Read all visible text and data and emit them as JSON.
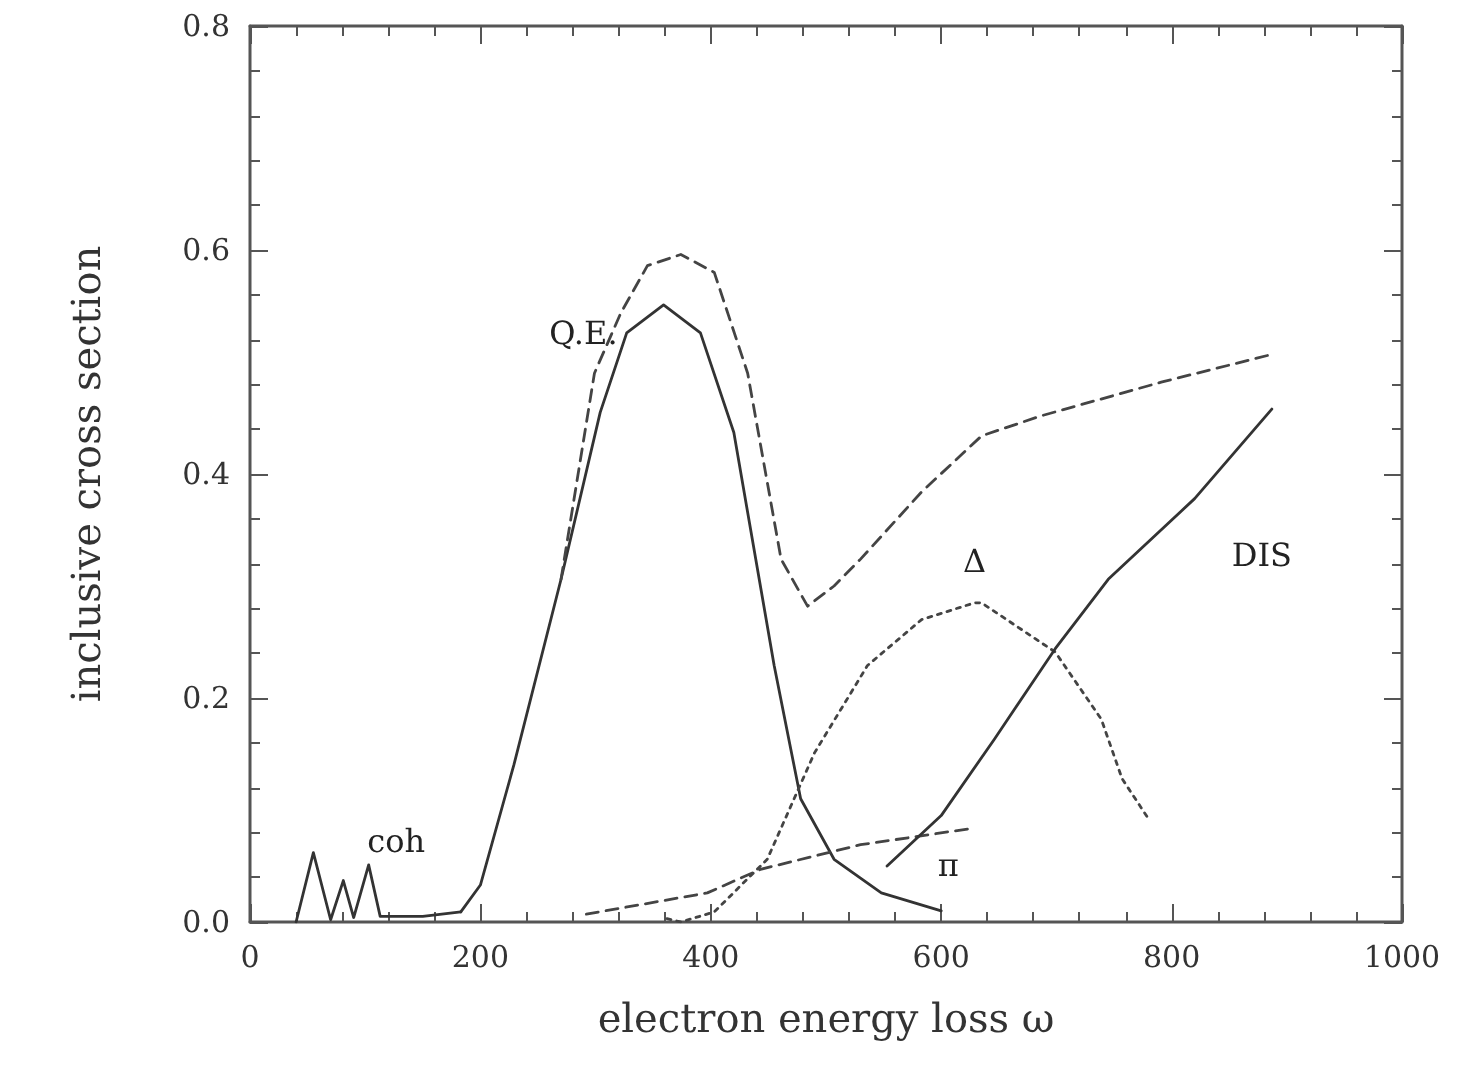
{
  "chart_data": {
    "type": "line",
    "xlabel": "electron energy loss ω",
    "ylabel": "inclusive cross section",
    "xlim": [
      0,
      1000
    ],
    "xticks": [
      0,
      200,
      400,
      600,
      800,
      1000
    ],
    "ylim": [
      0,
      0.8
    ],
    "yticks": [
      {
        "value": 0,
        "label": "0.0"
      },
      {
        "value": 0.2,
        "label": "0.2"
      },
      {
        "value": 0.4,
        "label": "0.4"
      },
      {
        "value": 0.6,
        "label": "0.6"
      },
      {
        "value": 0.8,
        "label": "0.8"
      }
    ],
    "grid": false,
    "legend": false,
    "marker": "none",
    "series": [
      {
        "name": "coh",
        "color": "#333333",
        "line_style": "solid",
        "x": [
          40,
          55,
          70,
          81,
          90,
          103,
          113,
          150,
          183
        ],
        "values": [
          0,
          0.062,
          0.002,
          0.037,
          0.004,
          0.051,
          0.005,
          0.005,
          0.009
        ]
      },
      {
        "name": "Q.E.",
        "color": "#333333",
        "line_style": "solid",
        "x": [
          183,
          200,
          229,
          270,
          304,
          327,
          359,
          391,
          420,
          455,
          478,
          507,
          548,
          600
        ],
        "values": [
          0.009,
          0.033,
          0.14,
          0.306,
          0.455,
          0.526,
          0.551,
          0.526,
          0.437,
          0.229,
          0.11,
          0.056,
          0.026,
          0.01
        ]
      },
      {
        "color": "#444444",
        "line_style": "dashed",
        "x": [
          270,
          299,
          322,
          345,
          374,
          403,
          432,
          461,
          484,
          507,
          530,
          583,
          635,
          687,
          791,
          884
        ],
        "values": [
          0.306,
          0.49,
          0.544,
          0.586,
          0.596,
          0.58,
          0.49,
          0.324,
          0.282,
          0.3,
          0.324,
          0.384,
          0.434,
          0.452,
          0.482,
          0.506
        ]
      },
      {
        "name": "Δ",
        "color": "#444444",
        "line_style": "dotted",
        "x": [
          362,
          374,
          403,
          449,
          490,
          536,
          583,
          629,
          635,
          699,
          739,
          757,
          780
        ],
        "values": [
          0.003,
          0,
          0.009,
          0.056,
          0.151,
          0.229,
          0.27,
          0.285,
          0.285,
          0.241,
          0.181,
          0.128,
          0.092
        ]
      },
      {
        "name": "π",
        "color": "#444444",
        "line_style": "dashed",
        "x": [
          292,
          397,
          443,
          530,
          623
        ],
        "values": [
          0.007,
          0.026,
          0.047,
          0.069,
          0.083
        ]
      },
      {
        "name": "DIS",
        "color": "#333333",
        "line_style": "solid",
        "x": [
          553,
          600,
          646,
          699,
          745,
          820,
          887
        ],
        "values": [
          0.05,
          0.095,
          0.163,
          0.244,
          0.306,
          0.378,
          0.458
        ]
      }
    ]
  }
}
